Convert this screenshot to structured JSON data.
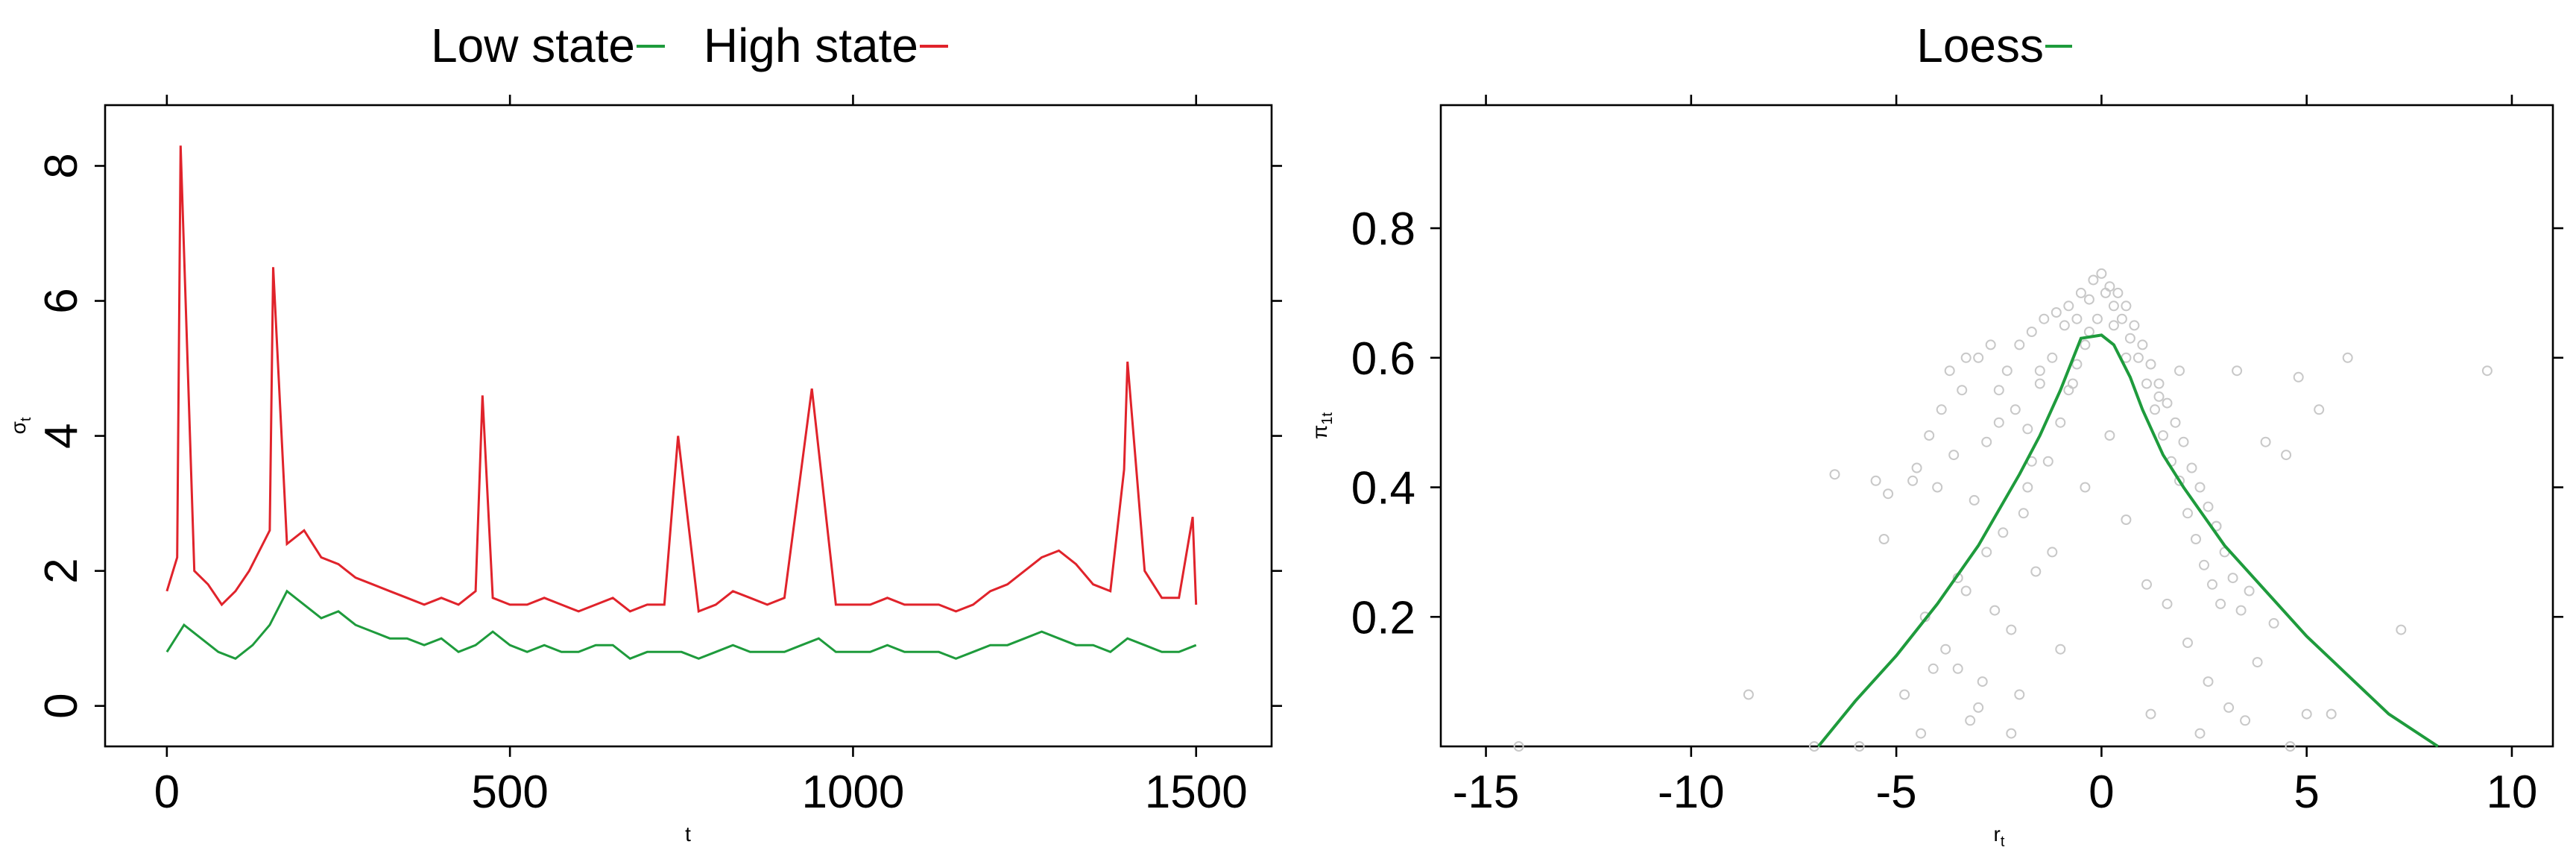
{
  "colors": {
    "low": "#1e9b3c",
    "high": "#e0232b",
    "loess": "#1e9b3c",
    "points": "#c8c8c8"
  },
  "chart_data": [
    {
      "type": "line",
      "xlabel": "t",
      "ylabel": "σ",
      "ylabel_sub": "t",
      "xlim": [
        -90,
        1610
      ],
      "ylim": [
        -0.6,
        8.9
      ],
      "xticks": [
        0,
        500,
        1000,
        1500
      ],
      "xtick_labels": [
        "0",
        "500",
        "1000",
        "1500"
      ],
      "yticks": [
        0,
        2,
        4,
        6,
        8
      ],
      "ytick_labels": [
        "0",
        "2",
        "4",
        "6",
        "8"
      ],
      "legend_position": "top",
      "series": [
        {
          "name": "Low state",
          "color": "#1e9b3c",
          "x": [
            0,
            25,
            50,
            75,
            100,
            125,
            150,
            175,
            200,
            225,
            250,
            275,
            300,
            325,
            350,
            375,
            400,
            425,
            450,
            475,
            500,
            525,
            550,
            575,
            600,
            625,
            650,
            675,
            700,
            725,
            750,
            775,
            800,
            825,
            850,
            875,
            900,
            925,
            950,
            975,
            1000,
            1025,
            1050,
            1075,
            1100,
            1125,
            1150,
            1175,
            1200,
            1225,
            1250,
            1275,
            1300,
            1325,
            1350,
            1375,
            1400,
            1425,
            1450,
            1475,
            1500
          ],
          "y": [
            0.8,
            1.2,
            1.0,
            0.8,
            0.7,
            0.9,
            1.2,
            1.7,
            1.5,
            1.3,
            1.4,
            1.2,
            1.1,
            1.0,
            1.0,
            0.9,
            1.0,
            0.8,
            0.9,
            1.1,
            0.9,
            0.8,
            0.9,
            0.8,
            0.8,
            0.9,
            0.9,
            0.7,
            0.8,
            0.8,
            0.8,
            0.7,
            0.8,
            0.9,
            0.8,
            0.8,
            0.8,
            0.9,
            1.0,
            0.8,
            0.8,
            0.8,
            0.9,
            0.8,
            0.8,
            0.8,
            0.7,
            0.8,
            0.9,
            0.9,
            1.0,
            1.1,
            1.0,
            0.9,
            0.9,
            0.8,
            1.0,
            0.9,
            0.8,
            0.8,
            0.9
          ]
        },
        {
          "name": "High state",
          "color": "#e0232b",
          "x": [
            0,
            15,
            20,
            40,
            60,
            80,
            100,
            120,
            150,
            155,
            175,
            200,
            225,
            250,
            275,
            300,
            325,
            350,
            375,
            400,
            425,
            450,
            460,
            475,
            500,
            525,
            550,
            575,
            600,
            625,
            650,
            675,
            700,
            725,
            745,
            775,
            800,
            825,
            850,
            875,
            900,
            940,
            975,
            1000,
            1025,
            1050,
            1075,
            1100,
            1125,
            1150,
            1175,
            1200,
            1225,
            1250,
            1275,
            1300,
            1325,
            1350,
            1375,
            1395,
            1400,
            1425,
            1450,
            1475,
            1495,
            1500
          ],
          "y": [
            1.7,
            2.2,
            8.3,
            2.0,
            1.8,
            1.5,
            1.7,
            2.0,
            2.6,
            6.5,
            2.4,
            2.6,
            2.2,
            2.1,
            1.9,
            1.8,
            1.7,
            1.6,
            1.5,
            1.6,
            1.5,
            1.7,
            4.6,
            1.6,
            1.5,
            1.5,
            1.6,
            1.5,
            1.4,
            1.5,
            1.6,
            1.4,
            1.5,
            1.5,
            4.0,
            1.4,
            1.5,
            1.7,
            1.6,
            1.5,
            1.6,
            4.7,
            1.5,
            1.5,
            1.5,
            1.6,
            1.5,
            1.5,
            1.5,
            1.4,
            1.5,
            1.7,
            1.8,
            2.0,
            2.2,
            2.3,
            2.1,
            1.8,
            1.7,
            3.5,
            5.1,
            2.0,
            1.6,
            1.6,
            2.8,
            1.5
          ]
        }
      ]
    },
    {
      "type": "scatter",
      "xlabel": "r",
      "xlabel_sub": "t",
      "ylabel": "π",
      "ylabel_sub": "1t",
      "xlim": [
        -16.1,
        11.0
      ],
      "ylim": [
        0.0,
        0.99
      ],
      "xticks": [
        -15,
        -10,
        -5,
        0,
        5,
        10
      ],
      "xtick_labels": [
        "-15",
        "-10",
        "-5",
        "0",
        "5",
        "10"
      ],
      "yticks": [
        0.2,
        0.4,
        0.6,
        0.8
      ],
      "ytick_labels": [
        "0.2",
        "0.4",
        "0.6",
        "0.8"
      ],
      "legend_position": "top",
      "series": [
        {
          "name": "Loess",
          "color": "#1e9b3c",
          "x": [
            -6.9,
            -6.0,
            -5.0,
            -4.0,
            -3.0,
            -2.0,
            -1.5,
            -1.0,
            -0.5,
            0.0,
            0.3,
            0.7,
            1.0,
            1.5,
            2.0,
            3.0,
            4.0,
            5.0,
            6.0,
            7.0,
            8.2
          ],
          "y": [
            0.0,
            0.07,
            0.14,
            0.22,
            0.31,
            0.42,
            0.48,
            0.55,
            0.63,
            0.635,
            0.62,
            0.57,
            0.52,
            0.45,
            0.4,
            0.31,
            0.24,
            0.17,
            0.11,
            0.05,
            0.0
          ]
        }
      ],
      "points": {
        "color": "#c8c8c8",
        "x": [
          -14.2,
          -8.6,
          -7.0,
          -6.5,
          -5.9,
          -5.5,
          -5.3,
          -5.2,
          -4.8,
          -4.6,
          -4.5,
          -4.3,
          -4.2,
          -4.1,
          -4.0,
          -3.9,
          -3.8,
          -3.7,
          -3.6,
          -3.5,
          -3.4,
          -3.3,
          -3.2,
          -3.1,
          -3.0,
          -2.9,
          -2.8,
          -2.7,
          -2.6,
          -2.5,
          -2.4,
          -2.3,
          -2.2,
          -2.1,
          -2.0,
          -1.9,
          -1.8,
          -1.7,
          -1.6,
          -1.5,
          -1.4,
          -1.3,
          -1.2,
          -1.1,
          -1.0,
          -0.9,
          -0.8,
          -0.7,
          -0.6,
          -0.5,
          -0.4,
          -0.3,
          -0.2,
          -0.1,
          0.0,
          0.1,
          0.2,
          0.3,
          0.4,
          0.5,
          0.6,
          0.7,
          0.8,
          0.9,
          1.0,
          1.1,
          1.2,
          1.3,
          1.4,
          1.5,
          1.6,
          1.7,
          1.8,
          1.9,
          2.0,
          2.1,
          2.2,
          2.3,
          2.4,
          2.5,
          2.6,
          2.7,
          2.8,
          2.9,
          3.0,
          3.2,
          3.4,
          3.6,
          3.8,
          4.0,
          4.2,
          4.5,
          4.8,
          5.0,
          5.3,
          5.6,
          6.0,
          7.3,
          9.4,
          -3.5,
          -2.8,
          -2.2,
          -1.7,
          -1.2,
          -0.8,
          -0.4,
          0.2,
          0.6,
          1.1,
          1.6,
          2.1,
          2.6,
          3.1,
          -4.4,
          -3.0,
          -2.0,
          -1.0,
          1.2,
          2.4,
          3.5,
          4.6,
          -3.3,
          -1.8,
          1.9,
          3.3,
          -2.5,
          -1.5,
          1.4,
          2.8,
          -0.6,
          0.6,
          -0.3,
          0.3
        ],
        "y": [
          0.0,
          0.08,
          0.0,
          0.42,
          0.0,
          0.41,
          0.32,
          0.39,
          0.08,
          0.41,
          0.43,
          0.2,
          0.48,
          0.12,
          0.4,
          0.52,
          0.15,
          0.58,
          0.45,
          0.26,
          0.55,
          0.6,
          0.04,
          0.38,
          0.6,
          0.1,
          0.47,
          0.62,
          0.21,
          0.55,
          0.33,
          0.58,
          0.02,
          0.52,
          0.62,
          0.36,
          0.49,
          0.64,
          0.27,
          0.58,
          0.66,
          0.44,
          0.6,
          0.67,
          0.5,
          0.65,
          0.68,
          0.56,
          0.66,
          0.7,
          0.62,
          0.69,
          0.72,
          0.66,
          0.73,
          0.7,
          0.71,
          0.68,
          0.7,
          0.66,
          0.68,
          0.63,
          0.65,
          0.6,
          0.62,
          0.56,
          0.59,
          0.52,
          0.56,
          0.48,
          0.53,
          0.44,
          0.5,
          0.41,
          0.47,
          0.36,
          0.43,
          0.32,
          0.4,
          0.28,
          0.37,
          0.25,
          0.34,
          0.22,
          0.3,
          0.26,
          0.21,
          0.24,
          0.13,
          0.47,
          0.19,
          0.45,
          0.57,
          0.05,
          0.52,
          0.05,
          0.6,
          0.18,
          0.58,
          0.12,
          0.3,
          0.18,
          0.44,
          0.3,
          0.55,
          0.4,
          0.48,
          0.35,
          0.25,
          0.22,
          0.16,
          0.1,
          0.06,
          0.02,
          0.06,
          0.08,
          0.15,
          0.05,
          0.02,
          0.04,
          0.0,
          0.24,
          0.4,
          0.58,
          0.58,
          0.5,
          0.56,
          0.54,
          0.34,
          0.59,
          0.6,
          0.64,
          0.65
        ]
      }
    }
  ]
}
